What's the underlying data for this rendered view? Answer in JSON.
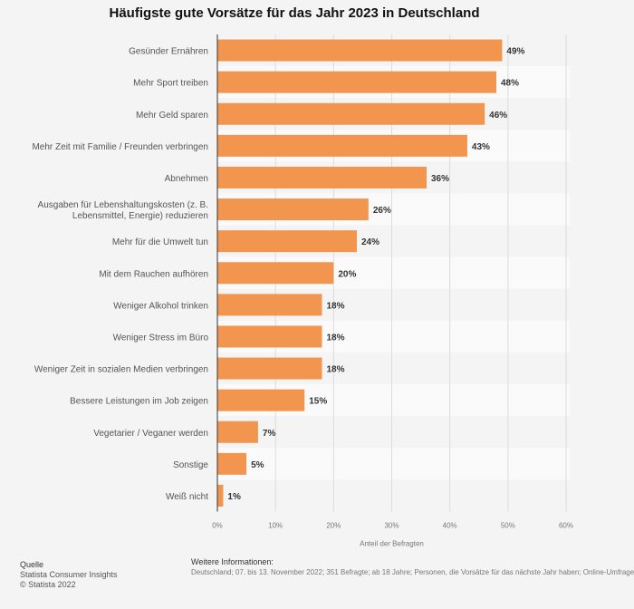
{
  "chart_data": {
    "type": "bar",
    "orientation": "horizontal",
    "title": "Häufigste gute Vorsätze für das Jahr 2023 in Deutschland",
    "categories": [
      [
        "Gesünder Ernähren"
      ],
      [
        "Mehr Sport treiben"
      ],
      [
        "Mehr Geld sparen"
      ],
      [
        "Mehr Zeit mit Familie / Freunden verbringen"
      ],
      [
        "Abnehmen"
      ],
      [
        "Ausgaben für Lebenshaltungskosten (z. B.",
        "Lebensmittel, Energie) reduzieren"
      ],
      [
        "Mehr für die Umwelt tun"
      ],
      [
        "Mit dem Rauchen aufhören"
      ],
      [
        "Weniger Alkohol trinken"
      ],
      [
        "Weniger Stress im Büro"
      ],
      [
        "Weniger Zeit in sozialen Medien verbringen"
      ],
      [
        "Bessere Leistungen im Job zeigen"
      ],
      [
        "Vegetarier / Veganer werden"
      ],
      [
        "Sonstige"
      ],
      [
        "Weiß nicht"
      ]
    ],
    "values": [
      49,
      48,
      46,
      43,
      36,
      26,
      24,
      20,
      18,
      18,
      18,
      15,
      7,
      5,
      1
    ],
    "value_suffix": "%",
    "xlabel": "Anteil der Befragten",
    "xlim": [
      0,
      60
    ],
    "xticks": [
      0,
      10,
      20,
      30,
      40,
      50,
      60
    ],
    "xtick_labels": [
      "0%",
      "10%",
      "20%",
      "30%",
      "40%",
      "50%",
      "60%"
    ],
    "bar_color": "#f2954f",
    "grid": true,
    "legend": "none"
  },
  "footer": {
    "source_heading": "Quelle",
    "source_line1": "Statista Consumer Insights",
    "source_line2": "© Statista 2022",
    "info_heading": "Weitere Informationen:",
    "info_text": "Deutschland; 07. bis 13. November 2022; 351 Befragte; ab 18 Jahre; Personen, die Vorsätze für das nächste Jahr haben; Online-Umfrage"
  }
}
